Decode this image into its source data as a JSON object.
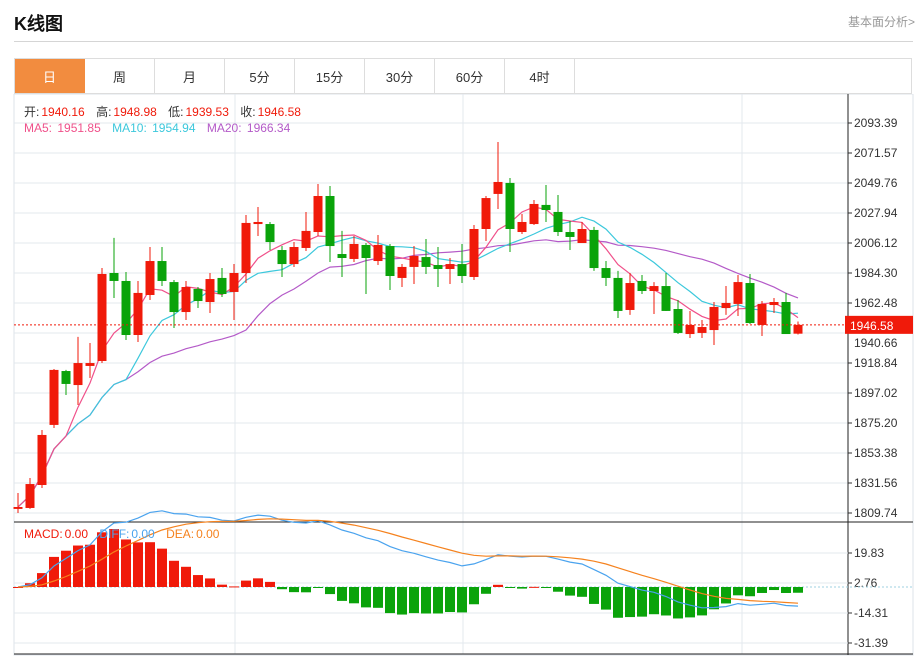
{
  "header": {
    "title": "K线图",
    "link": "基本面分析>"
  },
  "tabs": [
    {
      "label": "日",
      "active": true
    },
    {
      "label": "周"
    },
    {
      "label": "月"
    },
    {
      "label": "5分"
    },
    {
      "label": "15分"
    },
    {
      "label": "30分"
    },
    {
      "label": "60分"
    },
    {
      "label": "4时"
    }
  ],
  "ohlc_legend": {
    "open_label": "开:",
    "open": "1940.16",
    "high_label": "高:",
    "high": "1948.98",
    "low_label": "低:",
    "low": "1939.53",
    "close_label": "收:",
    "close": "1946.58"
  },
  "ma_legend": {
    "ma5_label": "MA5:",
    "ma5": "1951.85",
    "ma10_label": "MA10:",
    "ma10": "1954.94",
    "ma20_label": "MA20:",
    "ma20": "1966.34"
  },
  "macd_legend": {
    "macd_label": "MACD:",
    "macd": "0.00",
    "diff_label": "DIFF:",
    "diff": "0.00",
    "dea_label": "DEA:",
    "dea": "0.00"
  },
  "colors": {
    "up": "#f01a0a",
    "down": "#0aa30a",
    "ma5": "#f0508a",
    "ma10": "#3cc8dc",
    "ma20": "#b45ac8",
    "diff": "#4aa3ee",
    "dea": "#f5821e",
    "accent": "#f28c3f"
  },
  "chart_data": {
    "type": "candlestick",
    "price_axis_ticks": [
      "2093.39",
      "2071.57",
      "2049.76",
      "2027.94",
      "2006.12",
      "1984.30",
      "1962.48",
      "1940.66",
      "1918.84",
      "1897.02",
      "1875.20",
      "1853.38",
      "1831.56",
      "1809.74"
    ],
    "price_range": [
      1809.74,
      2093.39
    ],
    "current_price": "1946.58",
    "macd_axis_ticks": [
      "19.83",
      "2.76",
      "-14.31",
      "-31.39"
    ],
    "candles": [
      [
        1812.7,
        1814.1,
        1824.3,
        1809.7
      ],
      [
        1813.4,
        1830.8,
        1835.2,
        1812.7
      ],
      [
        1830.1,
        1866.5,
        1870.1,
        1827.9
      ],
      [
        1873.8,
        1913.8,
        1914.5,
        1871.6
      ],
      [
        1913.0,
        1903.6,
        1913.8,
        1895.6
      ],
      [
        1902.8,
        1918.8,
        1937.8,
        1888.3
      ],
      [
        1916.7,
        1918.8,
        1933.4,
        1907.9
      ],
      [
        1920.3,
        1983.6,
        1987.9,
        1918.8
      ],
      [
        1984.3,
        1978.5,
        2009.8,
        1966.1
      ],
      [
        1978.5,
        1939.2,
        1985.0,
        1935.6
      ],
      [
        1939.2,
        1969.8,
        1978.5,
        1934.1
      ],
      [
        1968.3,
        1993.0,
        2003.2,
        1964.7
      ],
      [
        1993.0,
        1978.5,
        2003.2,
        1974.8
      ],
      [
        1977.7,
        1955.9,
        1979.2,
        1944.3
      ],
      [
        1955.9,
        1974.1,
        1978.5,
        1950.1
      ],
      [
        1972.7,
        1963.9,
        1974.1,
        1958.8
      ],
      [
        1963.2,
        1979.9,
        1984.3,
        1955.2
      ],
      [
        1980.7,
        1969.0,
        1987.9,
        1966.8
      ],
      [
        1970.5,
        1984.3,
        1990.8,
        1950.1
      ],
      [
        1984.3,
        2020.7,
        2026.5,
        1977.0
      ],
      [
        2019.9,
        2021.4,
        2032.3,
        2011.2
      ],
      [
        2019.9,
        2006.8,
        2021.4,
        2001.0
      ],
      [
        2001.0,
        1990.8,
        2003.9,
        1981.4
      ],
      [
        1990.8,
        2003.2,
        2006.8,
        1988.7
      ],
      [
        2002.5,
        2014.9,
        2028.7,
        2000.3
      ],
      [
        2014.1,
        2040.3,
        2049.0,
        2011.2
      ],
      [
        2040.3,
        2003.9,
        2047.6,
        1992.3
      ],
      [
        1998.1,
        1995.2,
        2014.9,
        1981.4
      ],
      [
        1994.5,
        2005.4,
        2011.2,
        1992.3
      ],
      [
        2004.7,
        1995.2,
        2006.1,
        1969.0
      ],
      [
        1993.0,
        2004.7,
        2011.9,
        1990.1
      ],
      [
        2003.9,
        1982.1,
        2005.4,
        1971.9
      ],
      [
        1980.7,
        1988.7,
        1990.8,
        1974.1
      ],
      [
        1988.7,
        1996.7,
        2003.9,
        1976.3
      ],
      [
        1995.9,
        1988.7,
        2009.0,
        1983.6
      ],
      [
        1990.1,
        1987.2,
        2003.2,
        1974.1
      ],
      [
        1987.2,
        1990.8,
        1995.2,
        1976.3
      ],
      [
        1990.8,
        1982.1,
        2005.4,
        1977.0
      ],
      [
        1981.4,
        2016.3,
        2019.2,
        1979.2
      ],
      [
        2016.3,
        2038.8,
        2040.3,
        2007.6
      ],
      [
        2041.8,
        2050.5,
        2079.6,
        2030.8
      ],
      [
        2049.8,
        2016.3,
        2053.4,
        1999.6
      ],
      [
        2014.1,
        2021.4,
        2027.2,
        2012.7
      ],
      [
        2019.9,
        2034.5,
        2037.4,
        2019.2
      ],
      [
        2033.8,
        2030.1,
        2048.3,
        2021.4
      ],
      [
        2028.7,
        2014.1,
        2041.0,
        2011.2
      ],
      [
        2014.1,
        2010.5,
        2022.1,
        2001.0
      ],
      [
        2006.1,
        2016.3,
        2021.4,
        2006.1
      ],
      [
        2015.6,
        1987.9,
        2017.8,
        1985.8
      ],
      [
        1987.9,
        1980.7,
        1993.0,
        1974.8
      ],
      [
        1980.7,
        1956.7,
        1985.8,
        1951.6
      ],
      [
        1957.4,
        1977.0,
        1984.3,
        1953.8
      ],
      [
        1978.5,
        1971.2,
        1982.8,
        1969.0
      ],
      [
        1971.2,
        1974.8,
        1977.7,
        1954.5
      ],
      [
        1974.8,
        1956.7,
        1984.3,
        1956.7
      ],
      [
        1958.1,
        1940.7,
        1964.7,
        1939.9
      ],
      [
        1939.9,
        1946.5,
        1956.7,
        1937.0
      ],
      [
        1940.7,
        1945.0,
        1950.1,
        1937.0
      ],
      [
        1942.8,
        1959.6,
        1963.2,
        1931.9
      ],
      [
        1958.8,
        1962.5,
        1974.8,
        1953.8
      ],
      [
        1961.8,
        1977.7,
        1982.8,
        1953.0
      ],
      [
        1977.0,
        1947.9,
        1983.6,
        1947.2
      ],
      [
        1946.5,
        1961.8,
        1963.9,
        1938.5
      ],
      [
        1961.0,
        1963.2,
        1966.1,
        1955.2
      ],
      [
        1963.2,
        1939.9,
        1969.8,
        1939.9
      ],
      [
        1940.16,
        1946.58,
        1948.98,
        1939.53
      ]
    ]
  }
}
